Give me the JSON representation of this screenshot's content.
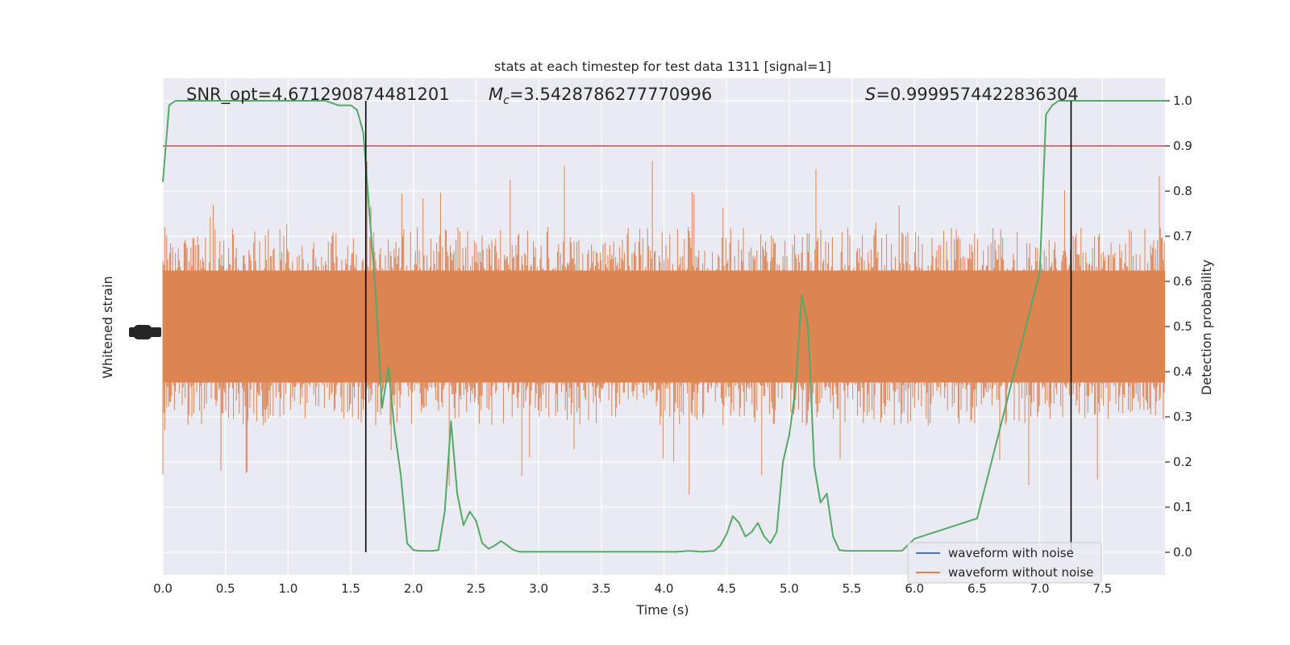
{
  "chart_data": {
    "type": "line",
    "title": "stats at each timestep for test data 1311 [signal=1]",
    "xlabel": "Time (s)",
    "ylabel_left": "Whitened strain",
    "ylabel_right": "Detection probability",
    "xlim": [
      0.0,
      8.0
    ],
    "ylim_right": [
      -0.05,
      1.05
    ],
    "x_ticks": [
      "0.0",
      "0.5",
      "1.0",
      "1.5",
      "2.0",
      "2.5",
      "3.0",
      "3.5",
      "4.0",
      "4.5",
      "5.0",
      "5.5",
      "6.0",
      "6.5",
      "7.0",
      "7.5"
    ],
    "y_ticks_right": [
      "0.0",
      "0.1",
      "0.2",
      "0.3",
      "0.4",
      "0.5",
      "0.6",
      "0.7",
      "0.8",
      "0.9",
      "1.0"
    ],
    "grid": true,
    "legend_placement": "lower right",
    "annotations": {
      "snr": "SNR_opt=4.671290874481201",
      "mc_symbol": "M",
      "mc_subscript": "c",
      "mc_value": "=3.5428786277770996",
      "s_symbol": "S",
      "s_value": "=0.9999574422836304"
    },
    "threshold": {
      "y": 0.9,
      "color": "#c44e52"
    },
    "vlines": {
      "x": [
        1.62,
        7.25
      ],
      "color": "#000000"
    },
    "colors": {
      "background": "#eaeaf2",
      "noise_strain": "#4c72b0",
      "clean_strain": "#dd8452",
      "probability": "#55a868"
    },
    "series": [
      {
        "name": "waveform with noise",
        "kind": "strain"
      },
      {
        "name": "waveform without noise",
        "kind": "strain"
      },
      {
        "kind": "probability",
        "x": [
          0.0,
          0.05,
          0.1,
          0.15,
          0.2,
          0.3,
          0.5,
          0.8,
          1.0,
          1.2,
          1.3,
          1.4,
          1.45,
          1.5,
          1.55,
          1.6,
          1.63,
          1.7,
          1.75,
          1.8,
          1.85,
          1.9,
          1.95,
          2.0,
          2.05,
          2.1,
          2.15,
          2.2,
          2.25,
          2.3,
          2.35,
          2.4,
          2.45,
          2.5,
          2.55,
          2.6,
          2.65,
          2.7,
          2.8,
          2.85,
          2.9,
          2.95,
          3.0,
          3.1,
          3.2,
          3.5,
          3.8,
          4.1,
          4.2,
          4.3,
          4.4,
          4.45,
          4.5,
          4.55,
          4.6,
          4.65,
          4.7,
          4.75,
          4.8,
          4.85,
          4.9,
          4.95,
          5.0,
          5.05,
          5.1,
          5.15,
          5.2,
          5.25,
          5.3,
          5.35,
          5.4,
          5.45,
          5.5,
          5.55,
          5.6,
          5.65,
          5.7,
          5.8,
          5.9,
          6.0,
          6.5,
          7.0,
          7.05,
          7.1,
          7.15,
          7.2,
          7.25,
          7.3,
          7.35,
          7.4,
          7.5,
          7.8,
          8.0
        ],
        "y": [
          0.82,
          0.99,
          1.0,
          1.0,
          1.0,
          1.0,
          1.0,
          1.0,
          1.0,
          1.0,
          1.0,
          0.99,
          0.99,
          0.99,
          0.98,
          0.93,
          0.82,
          0.57,
          0.32,
          0.41,
          0.27,
          0.17,
          0.02,
          0.005,
          0.003,
          0.003,
          0.003,
          0.005,
          0.09,
          0.29,
          0.13,
          0.06,
          0.09,
          0.07,
          0.02,
          0.008,
          0.015,
          0.025,
          0.005,
          0.001,
          0.001,
          0.001,
          0.001,
          0.001,
          0.001,
          0.001,
          0.001,
          0.001,
          0.003,
          0.001,
          0.003,
          0.015,
          0.04,
          0.08,
          0.065,
          0.035,
          0.045,
          0.065,
          0.035,
          0.02,
          0.045,
          0.2,
          0.26,
          0.36,
          0.57,
          0.5,
          0.19,
          0.11,
          0.13,
          0.035,
          0.005,
          0.003,
          0.003,
          0.003,
          0.003,
          0.003,
          0.003,
          0.003,
          0.003,
          0.03,
          0.075,
          0.62,
          0.97,
          0.99,
          1.0,
          1.0,
          1.0,
          1.0,
          1.0,
          1.0,
          1.0,
          1.0,
          1.0
        ]
      }
    ]
  }
}
